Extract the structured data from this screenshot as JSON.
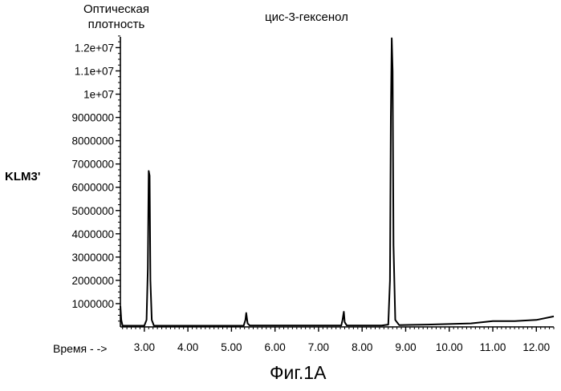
{
  "chart_data": {
    "type": "line",
    "ylabel_lines": [
      "Оптическая",
      "плотность"
    ],
    "trace_label": "KLM3'",
    "xlabel": "Время",
    "caption": "Фиг.1А",
    "annotations": [
      {
        "text": "цис-3-гексенол",
        "x": 8.7
      }
    ],
    "xlim": [
      2.45,
      12.4
    ],
    "ylim": [
      0,
      12600000
    ],
    "x_ticks": [
      3.0,
      4.0,
      5.0,
      6.0,
      7.0,
      8.0,
      9.0,
      10.0,
      11.0,
      12.0
    ],
    "x_tick_labels": [
      "3.00",
      "4.00",
      "5.00",
      "6.00",
      "7.00",
      "8.00",
      "9.00",
      "10.00",
      "11.00",
      "12.00"
    ],
    "y_ticks": [
      1000000,
      2000000,
      3000000,
      4000000,
      5000000,
      6000000,
      7000000,
      8000000,
      9000000,
      10000000,
      11000000,
      12000000
    ],
    "y_tick_labels": [
      "1000000",
      "2000000",
      "3000000",
      "4000000",
      "5000000",
      "6000000",
      "7000000",
      "8000000",
      "9000000",
      "1e+07",
      "1.1e+07",
      "1.2e+07"
    ],
    "series": [
      {
        "x": [
          2.45,
          2.47,
          2.5,
          3.0,
          3.05,
          3.08,
          3.1,
          3.12,
          3.14,
          3.17,
          3.22,
          5.28,
          5.32,
          5.34,
          5.37,
          5.42,
          7.52,
          7.55,
          7.58,
          7.6,
          7.65,
          8.45,
          8.6,
          8.64,
          8.66,
          8.68,
          8.7,
          8.72,
          8.76,
          8.85,
          9.5,
          10.5,
          11.0,
          11.5,
          12.0,
          12.4
        ],
        "y": [
          900000,
          300000,
          50000,
          50000,
          300000,
          2500000,
          6700000,
          6500000,
          2000000,
          300000,
          50000,
          50000,
          300000,
          600000,
          150000,
          60000,
          60000,
          300000,
          650000,
          200000,
          60000,
          60000,
          100000,
          2000000,
          9000000,
          12400000,
          11000000,
          3500000,
          300000,
          80000,
          100000,
          150000,
          250000,
          250000,
          300000,
          450000
        ]
      }
    ]
  }
}
